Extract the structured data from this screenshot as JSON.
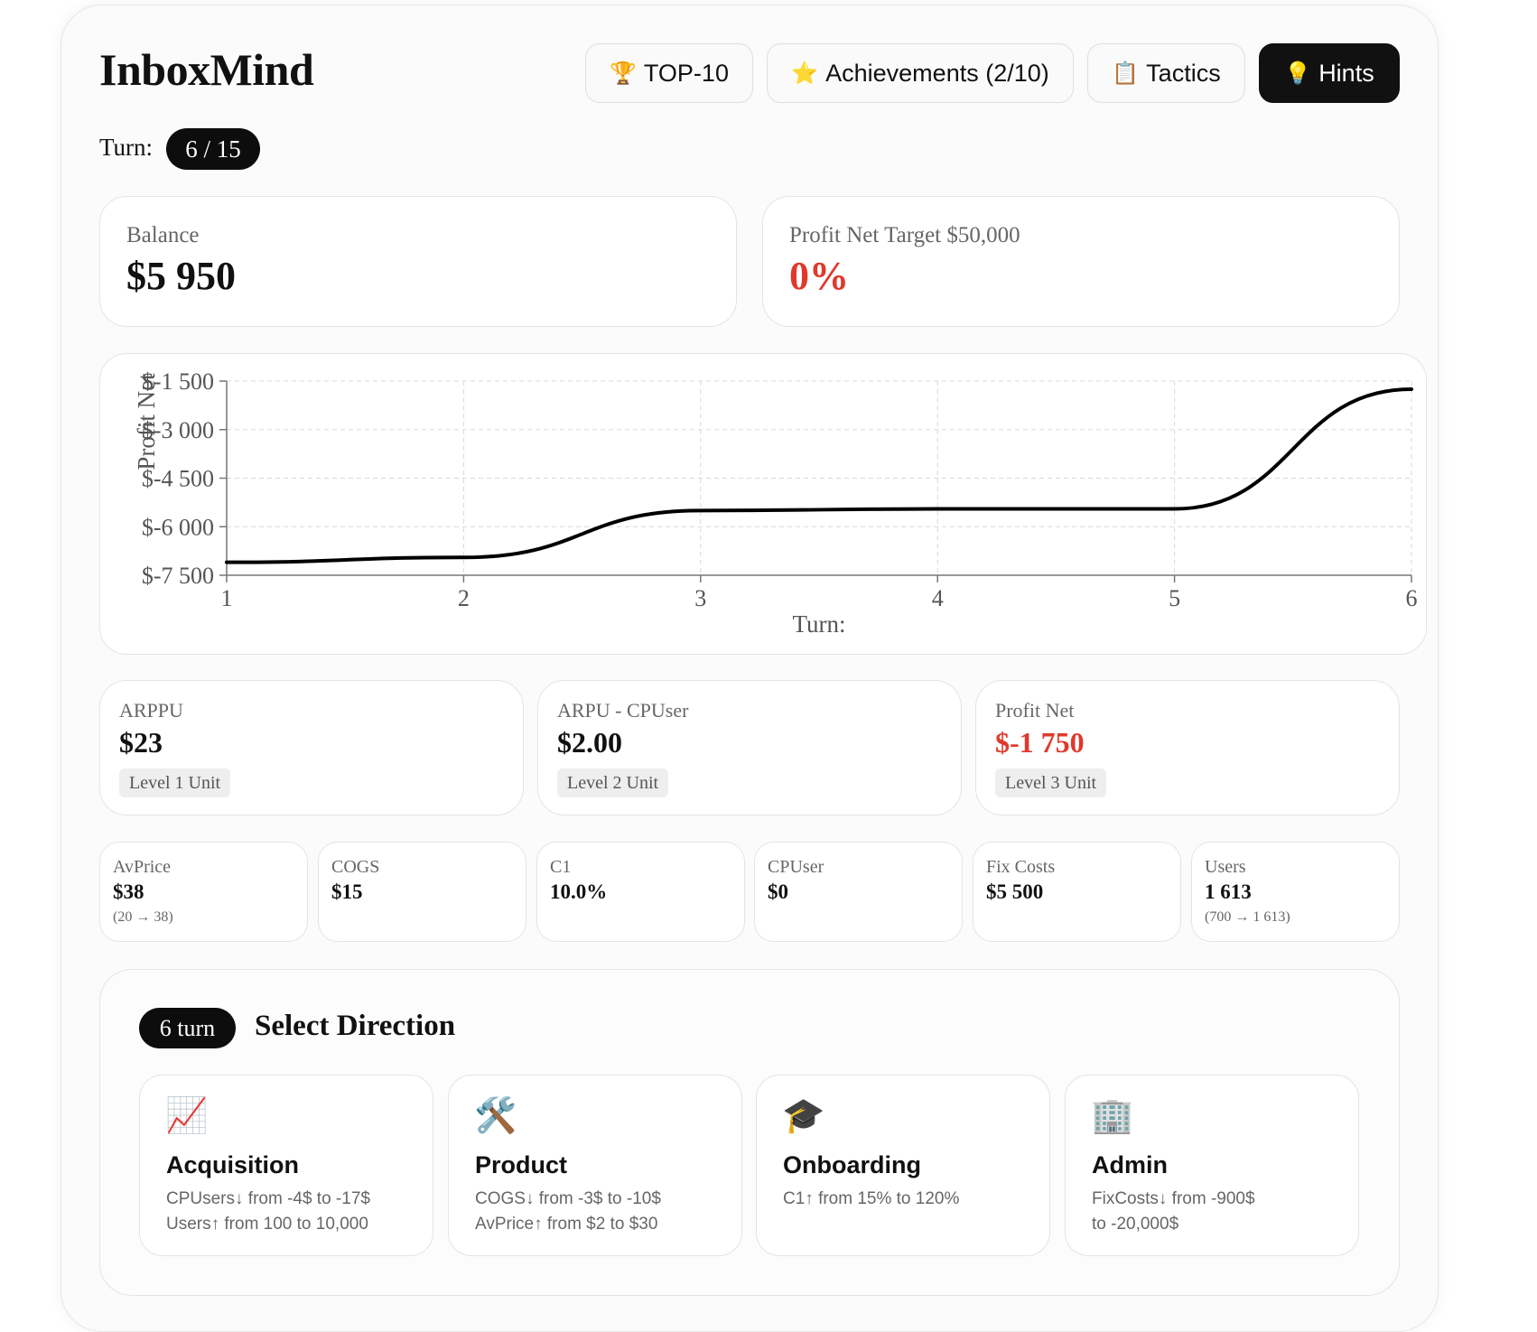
{
  "app": {
    "title": "InboxMind"
  },
  "toolbar": {
    "top10": {
      "icon": "🏆",
      "label": "TOP-10"
    },
    "achievements": {
      "icon": "⭐",
      "label": "Achievements (2/10)"
    },
    "tactics": {
      "icon": "📋",
      "label": "Tactics"
    },
    "hints": {
      "icon": "💡",
      "label": "Hints"
    }
  },
  "turn": {
    "label": "Turn:",
    "value": "6 / 15"
  },
  "balance": {
    "label": "Balance",
    "value": "$5 950"
  },
  "target": {
    "label": "Profit Net Target $50,000",
    "value": "0%",
    "color": "#e0392b"
  },
  "chart_data": {
    "type": "line",
    "title": "",
    "xlabel": "Turn:",
    "ylabel": "Profit Net",
    "x": [
      1,
      2,
      3,
      4,
      5,
      6
    ],
    "series": [
      {
        "values": [
          -7100,
          -6950,
          -5500,
          -5450,
          -5450,
          -1750
        ]
      }
    ],
    "x_ticks": [
      "1",
      "2",
      "3",
      "4",
      "5",
      "6"
    ],
    "y_ticks": [
      {
        "value": -1500,
        "label": "$-1 500"
      },
      {
        "value": -3000,
        "label": "$-3 000"
      },
      {
        "value": -4500,
        "label": "$-4 500"
      },
      {
        "value": -6000,
        "label": "$-6 000"
      },
      {
        "value": -7500,
        "label": "$-7 500"
      }
    ],
    "ylim": [
      -7500,
      -1500
    ],
    "xlim": [
      1,
      6
    ],
    "grid": true,
    "line_color": "#000000"
  },
  "metrics": [
    {
      "label": "ARPPU",
      "value": "$23",
      "tag": "Level 1 Unit",
      "color": "#111111"
    },
    {
      "label": "ARPU - CPUser",
      "value": "$2.00",
      "tag": "Level 2 Unit",
      "color": "#111111"
    },
    {
      "label": "Profit Net",
      "value": "$-1 750",
      "tag": "Level 3 Unit",
      "color": "#e0392b"
    }
  ],
  "stats": [
    {
      "label": "AvPrice",
      "value": "$38",
      "sub": "(20 → 38)"
    },
    {
      "label": "COGS",
      "value": "$15",
      "sub": ""
    },
    {
      "label": "C1",
      "value": "10.0%",
      "sub": ""
    },
    {
      "label": "CPUser",
      "value": "$0",
      "sub": ""
    },
    {
      "label": "Fix Costs",
      "value": "$5 500",
      "sub": ""
    },
    {
      "label": "Users",
      "value": "1 613",
      "sub": "(700 → 1 613)"
    }
  ],
  "directions_section": {
    "turn_label": "6 turn",
    "title": "Select Direction",
    "cards": [
      {
        "icon": "📈",
        "title": "Acquisition",
        "lines": [
          "CPUsers↓ from -4$ to -17$",
          "Users↑ from 100 to 10,000"
        ]
      },
      {
        "icon": "🛠️",
        "title": "Product",
        "lines": [
          "COGS↓ from -3$ to -10$",
          "AvPrice↑ from $2 to $30"
        ]
      },
      {
        "icon": "🎓",
        "title": "Onboarding",
        "lines": [
          "C1↑ from 15% to 120%",
          ""
        ]
      },
      {
        "icon": "🏢",
        "title": "Admin",
        "lines": [
          "FixCosts↓ from -900$",
          "to -20,000$"
        ]
      }
    ]
  }
}
